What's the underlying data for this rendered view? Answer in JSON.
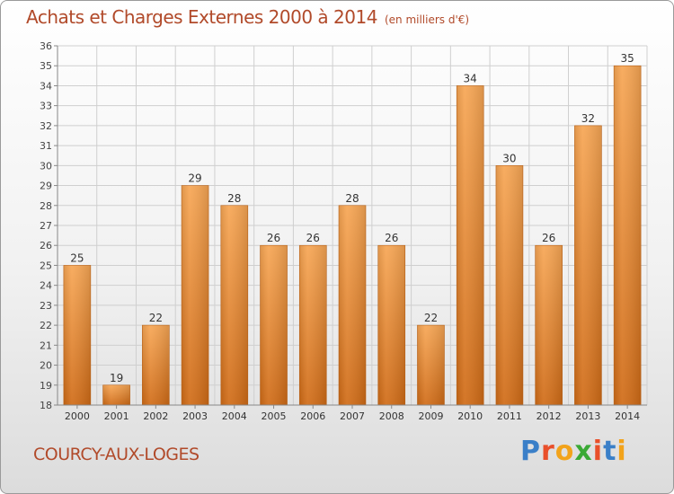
{
  "title": "Achats et Charges Externes 2000 à 2014",
  "subtitle": "(en milliers d'€)",
  "commune": "COURCY-AUX-LOGES",
  "brand": {
    "letters": [
      "P",
      "r",
      "o",
      "x",
      "i",
      "t",
      "i"
    ],
    "colors": [
      "#3a7fc8",
      "#e94f2a",
      "#f2a31b",
      "#3aa935",
      "#e94f2a",
      "#3a7fc8",
      "#f2a31b"
    ]
  },
  "colors": {
    "bar_top": "#f7a654",
    "bar_bottom": "#d06b16",
    "grid": "#cfcfcf",
    "text": "#b14a2a"
  },
  "chart_data": {
    "type": "bar",
    "categories": [
      "2000",
      "2001",
      "2002",
      "2003",
      "2004",
      "2005",
      "2006",
      "2007",
      "2008",
      "2009",
      "2010",
      "2011",
      "2012",
      "2013",
      "2014"
    ],
    "values": [
      25,
      19,
      22,
      29,
      28,
      26,
      26,
      28,
      26,
      22,
      34,
      30,
      26,
      32,
      35
    ],
    "ylim": [
      18,
      36
    ],
    "yticks": [
      18,
      19,
      20,
      21,
      22,
      23,
      24,
      25,
      26,
      27,
      28,
      29,
      30,
      31,
      32,
      33,
      34,
      35,
      36
    ],
    "grid": true,
    "data_labels": true
  }
}
